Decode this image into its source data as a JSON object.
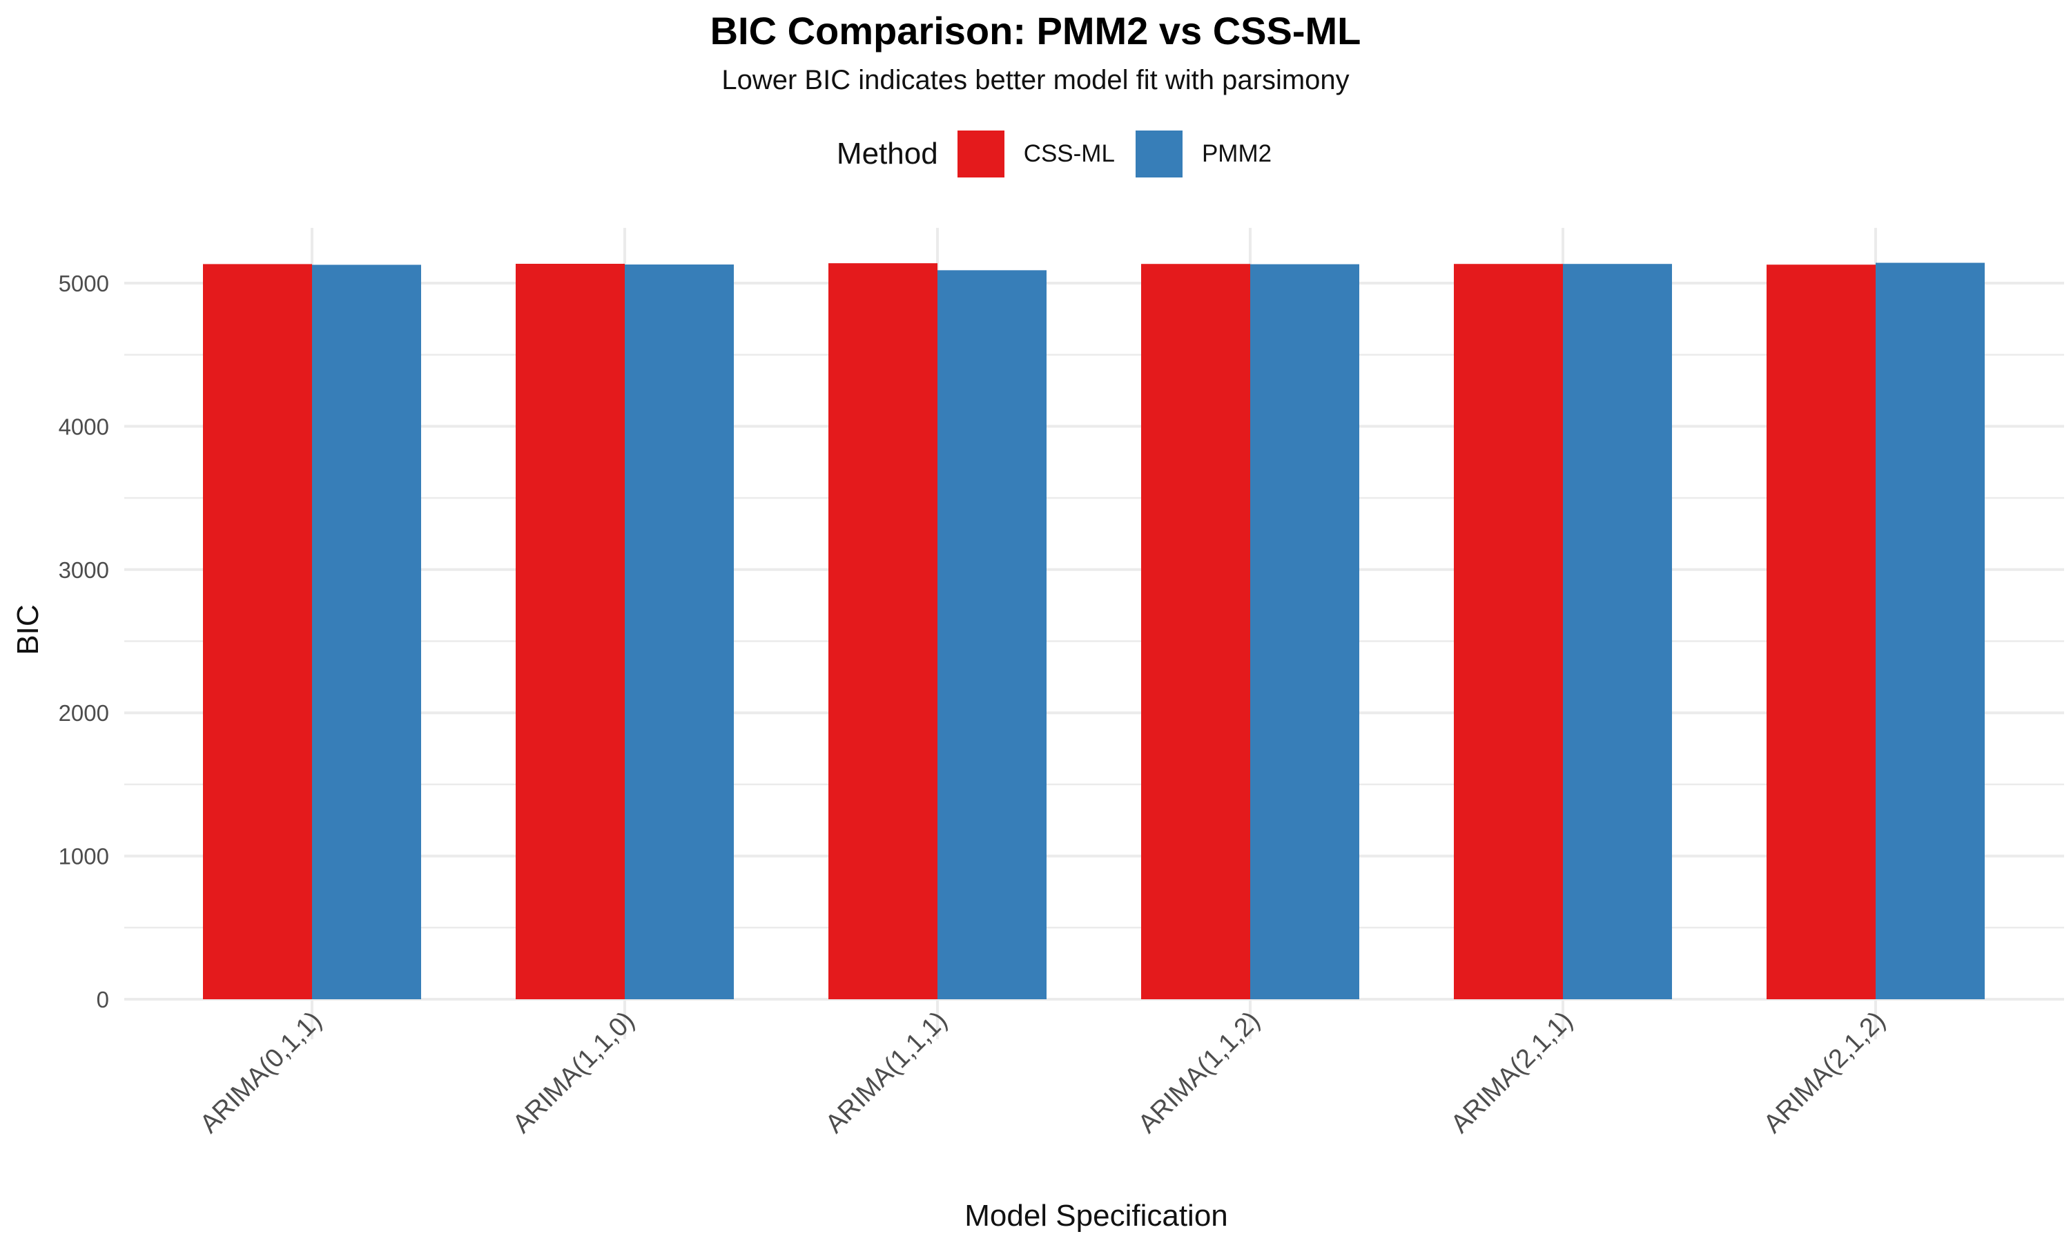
{
  "chart_data": {
    "type": "bar",
    "title": "BIC Comparison: PMM2 vs CSS-ML",
    "subtitle": "Lower BIC indicates better model fit with parsimony",
    "xlabel": "Model Specification",
    "ylabel": "BIC",
    "categories": [
      "ARIMA(0,1,1)",
      "ARIMA(1,1,0)",
      "ARIMA(1,1,1)",
      "ARIMA(1,1,2)",
      "ARIMA(2,1,1)",
      "ARIMA(2,1,2)"
    ],
    "series": [
      {
        "name": "CSS-ML",
        "color": "#e41a1c",
        "values": [
          5133,
          5135,
          5139,
          5134,
          5134,
          5129
        ]
      },
      {
        "name": "PMM2",
        "color": "#377eb8",
        "values": [
          5128,
          5130,
          5090,
          5132,
          5134,
          5142
        ]
      }
    ],
    "ylim": [
      0,
      5400
    ],
    "yticks": [
      0,
      1000,
      2000,
      3000,
      4000,
      5000
    ],
    "grid": true,
    "legend": {
      "title": "Method",
      "position": "top"
    }
  }
}
